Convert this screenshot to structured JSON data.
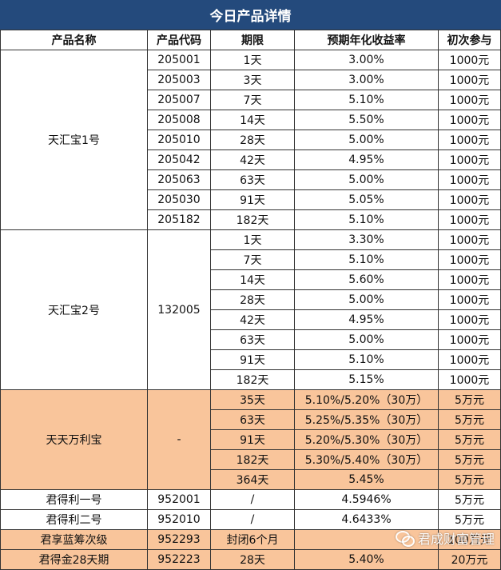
{
  "title": "今日产品详情",
  "headers": [
    "产品名称",
    "产品代码",
    "期限",
    "预期年化收益率",
    "初次参与"
  ],
  "groups": [
    {
      "name": "天汇宝1号",
      "shared_code": null,
      "highlight": false,
      "rows": [
        {
          "code": "205001",
          "term": "1天",
          "rate": "3.00%",
          "min": "1000元"
        },
        {
          "code": "205003",
          "term": "3天",
          "rate": "3.00%",
          "min": "1000元"
        },
        {
          "code": "205007",
          "term": "7天",
          "rate": "5.10%",
          "min": "1000元"
        },
        {
          "code": "205008",
          "term": "14天",
          "rate": "5.50%",
          "min": "1000元"
        },
        {
          "code": "205010",
          "term": "28天",
          "rate": "5.00%",
          "min": "1000元"
        },
        {
          "code": "205042",
          "term": "42天",
          "rate": "4.95%",
          "min": "1000元"
        },
        {
          "code": "205063",
          "term": "63天",
          "rate": "5.00%",
          "min": "1000元"
        },
        {
          "code": "205030",
          "term": "91天",
          "rate": "5.05%",
          "min": "1000元"
        },
        {
          "code": "205182",
          "term": "182天",
          "rate": "5.10%",
          "min": "1000元"
        }
      ]
    },
    {
      "name": "天汇宝2号",
      "shared_code": "132005",
      "highlight": false,
      "rows": [
        {
          "term": "1天",
          "rate": "3.30%",
          "min": "1000元"
        },
        {
          "term": "7天",
          "rate": "5.10%",
          "min": "1000元"
        },
        {
          "term": "14天",
          "rate": "5.60%",
          "min": "1000元"
        },
        {
          "term": "28天",
          "rate": "5.00%",
          "min": "1000元"
        },
        {
          "term": "42天",
          "rate": "4.95%",
          "min": "1000元"
        },
        {
          "term": "63天",
          "rate": "5.00%",
          "min": "1000元"
        },
        {
          "term": "91天",
          "rate": "5.10%",
          "min": "1000元"
        },
        {
          "term": "182天",
          "rate": "5.15%",
          "min": "1000元"
        }
      ]
    },
    {
      "name": "天天万利宝",
      "shared_code": "-",
      "highlight": true,
      "rows": [
        {
          "term": "35天",
          "rate": "5.10%/5.20%（30万）",
          "min": "5万元"
        },
        {
          "term": "63天",
          "rate": "5.25%/5.35%（30万）",
          "min": "5万元"
        },
        {
          "term": "91天",
          "rate": "5.20%/5.30%（30万）",
          "min": "5万元"
        },
        {
          "term": "182天",
          "rate": "5.30%/5.40%（30万）",
          "min": "5万元"
        },
        {
          "term": "364天",
          "rate": "5.45%",
          "min": "5万元"
        }
      ]
    }
  ],
  "singles": [
    {
      "name": "君得利一号",
      "code": "952001",
      "term": "/",
      "rate": "4.5946%",
      "min": "5万元",
      "highlight": false
    },
    {
      "name": "君得利二号",
      "code": "952010",
      "term": "/",
      "rate": "4.6433%",
      "min": "5万元",
      "highlight": false
    },
    {
      "name": "君享蓝筹次级",
      "code": "952293",
      "term": "封闭6个月",
      "rate": "",
      "min": "100万元",
      "highlight": true
    },
    {
      "name": "君得金28天期",
      "code": "952223",
      "term": "28天",
      "rate": "5.40%",
      "min": "20万元",
      "highlight": true
    }
  ],
  "watermark": {
    "icon": "wechat-icon",
    "text": "君成财富管理"
  },
  "colors": {
    "title_bg": "#244a7c",
    "highlight_bg": "#f9c59b"
  }
}
